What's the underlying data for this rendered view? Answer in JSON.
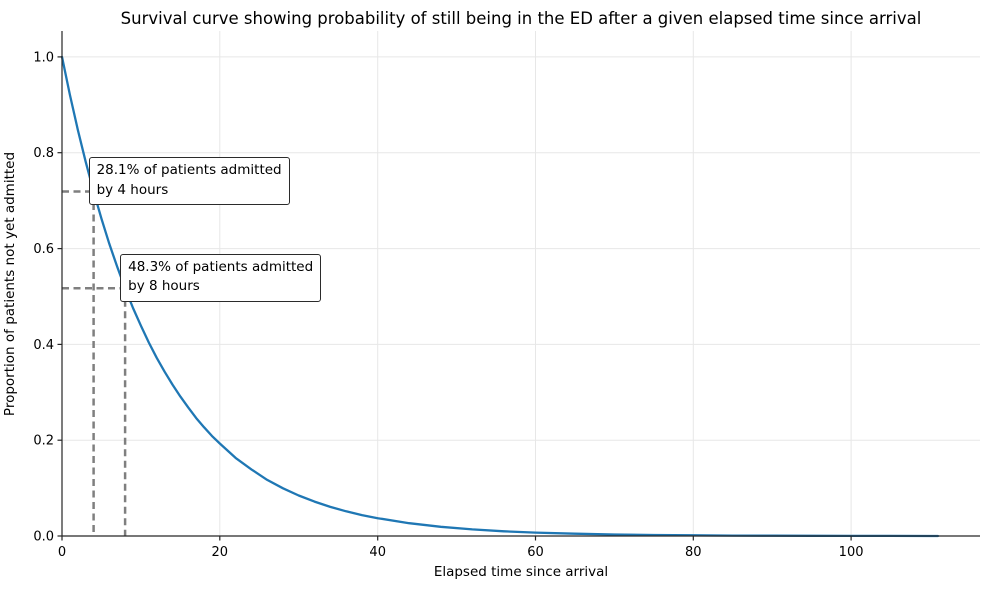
{
  "chart_data": {
    "type": "line",
    "title": "Survival curve showing probability of still being in the ED after a given elapsed time since arrival",
    "xlabel": "Elapsed time since arrival",
    "ylabel": "Proportion of patients not yet admitted",
    "xlim": [
      0,
      116.33
    ],
    "ylim": [
      0,
      1.0541
    ],
    "grid": true,
    "legend": "none",
    "x_ticks": [
      0,
      20,
      40,
      60,
      80,
      100
    ],
    "x_tick_labels": [
      "0",
      "20",
      "40",
      "60",
      "80",
      "100"
    ],
    "y_ticks": [
      0.0,
      0.2,
      0.4,
      0.6,
      0.8,
      1.0
    ],
    "y_tick_labels": [
      "0.0",
      "0.2",
      "0.4",
      "0.6",
      "0.8",
      "1.0"
    ],
    "colors": {
      "line": "#1f77b4",
      "guide": "#7f7f7f",
      "grid": "#e7e7e7",
      "spine": "#262626",
      "text": "#000000"
    },
    "series": [
      {
        "name": "survival",
        "points": [
          [
            0,
            1.0
          ],
          [
            1,
            0.921
          ],
          [
            2,
            0.848
          ],
          [
            3,
            0.781
          ],
          [
            4,
            0.719
          ],
          [
            5,
            0.662
          ],
          [
            6,
            0.61
          ],
          [
            7,
            0.562
          ],
          [
            8,
            0.517
          ],
          [
            9,
            0.476
          ],
          [
            10,
            0.439
          ],
          [
            11,
            0.404
          ],
          [
            12,
            0.372
          ],
          [
            13,
            0.343
          ],
          [
            14,
            0.316
          ],
          [
            15,
            0.291
          ],
          [
            16,
            0.268
          ],
          [
            17,
            0.246
          ],
          [
            18,
            0.227
          ],
          [
            19,
            0.209
          ],
          [
            20,
            0.193
          ],
          [
            22,
            0.163
          ],
          [
            24,
            0.139
          ],
          [
            26,
            0.117
          ],
          [
            28,
            0.0996
          ],
          [
            30,
            0.0845
          ],
          [
            32,
            0.0717
          ],
          [
            34,
            0.0608
          ],
          [
            36,
            0.0515
          ],
          [
            38,
            0.0437
          ],
          [
            40,
            0.0371
          ],
          [
            44,
            0.0267
          ],
          [
            48,
            0.0192
          ],
          [
            52,
            0.0138
          ],
          [
            56,
            0.0099
          ],
          [
            60,
            0.0071
          ],
          [
            65,
            0.0047
          ],
          [
            70,
            0.0031
          ],
          [
            75,
            0.0021
          ],
          [
            80,
            0.0014
          ],
          [
            85,
            0.0009
          ],
          [
            90,
            0.0006
          ],
          [
            95,
            0.0004
          ],
          [
            100,
            0.0003
          ],
          [
            105,
            0.0002
          ],
          [
            110,
            0.0001
          ],
          [
            111,
            0.0001
          ]
        ]
      }
    ],
    "annotations": [
      {
        "text": "28.1% of patients admitted\nby 4 hours",
        "x": 4,
        "y": 0.719
      },
      {
        "text": "48.3% of patients admitted\nby 8 hours",
        "x": 8,
        "y": 0.517
      }
    ]
  }
}
